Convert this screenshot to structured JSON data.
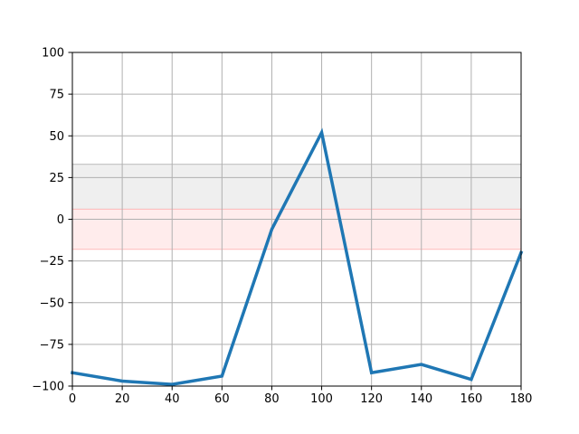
{
  "chart_data": {
    "type": "line",
    "title": "",
    "xlabel": "",
    "ylabel": "",
    "xlim": [
      0,
      180
    ],
    "ylim": [
      -100,
      100
    ],
    "x_ticks": [
      0,
      20,
      40,
      60,
      80,
      100,
      120,
      140,
      160,
      180
    ],
    "y_ticks": [
      -100,
      -75,
      -50,
      -25,
      0,
      25,
      50,
      75,
      100
    ],
    "x_tick_labels": [
      "0",
      "20",
      "40",
      "60",
      "80",
      "100",
      "120",
      "140",
      "160",
      "180"
    ],
    "y_tick_labels": [
      "−100",
      "−75",
      "−50",
      "−25",
      "0",
      "25",
      "50",
      "75",
      "100"
    ],
    "grid": true,
    "bands": [
      {
        "y0": 6,
        "y1": 33,
        "color": "#efefef",
        "edge_color": "#c8c8c8"
      },
      {
        "y0": -18,
        "y1": 6,
        "color": "#ffecec",
        "edge_color": "#ffc0c0"
      }
    ],
    "series": [
      {
        "color": "#1f77b4",
        "x": [
          0,
          20,
          40,
          60,
          80,
          100,
          120,
          140,
          160,
          180
        ],
        "y": [
          -92,
          -97,
          -99,
          -94,
          -6,
          52,
          -92,
          -87,
          -96,
          -20
        ]
      }
    ]
  }
}
